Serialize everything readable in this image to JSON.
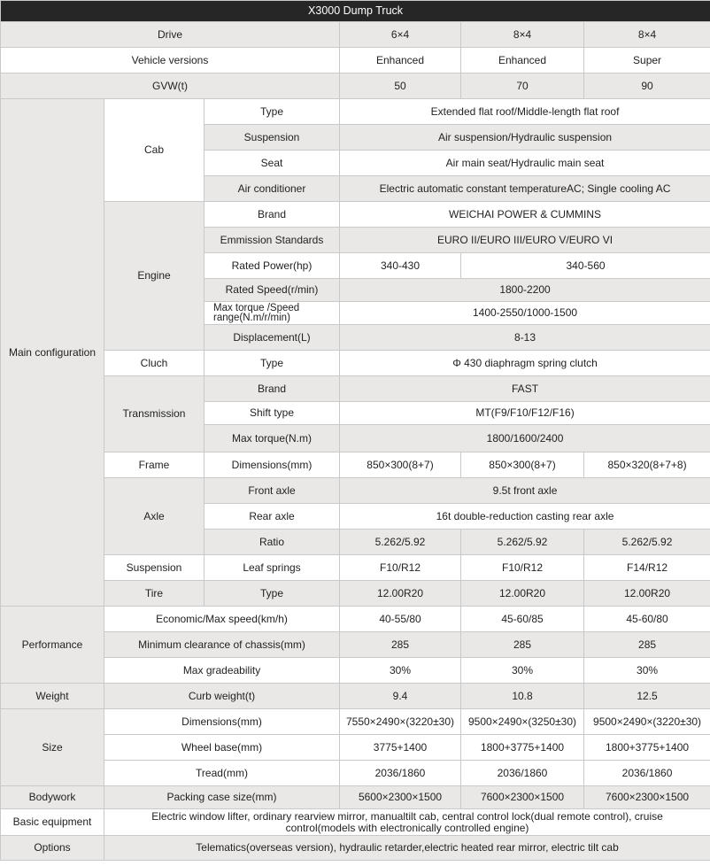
{
  "title": "X3000 Dump Truck",
  "header": {
    "drive": {
      "label": "Drive",
      "values": [
        "6×4",
        "8×4",
        "8×4"
      ]
    },
    "versions": {
      "label": "Vehicle versions",
      "values": [
        "Enhanced",
        "Enhanced",
        "Super"
      ]
    },
    "gvw": {
      "label": "GVW(t)",
      "values": [
        "50",
        "70",
        "90"
      ]
    }
  },
  "main_config": {
    "label": "Main configuration",
    "cab": {
      "label": "Cab",
      "type": {
        "label": "Type",
        "value": "Extended flat roof/Middle-length flat roof"
      },
      "suspension": {
        "label": "Suspension",
        "value": "Air suspension/Hydraulic suspension"
      },
      "seat": {
        "label": "Seat",
        "value": "Air main seat/Hydraulic main seat"
      },
      "ac": {
        "label": "Air conditioner",
        "value": "Electric automatic constant temperatureAC; Single cooling AC"
      }
    },
    "engine": {
      "label": "Engine",
      "brand": {
        "label": "Brand",
        "value": "WEICHAI POWER & CUMMINS"
      },
      "emission": {
        "label": "Emmission Standards",
        "value": "EURO II/EURO III/EURO V/EURO VI"
      },
      "power": {
        "label": "Rated Power(hp)",
        "values": [
          "340-430",
          "340-560"
        ]
      },
      "speed": {
        "label": "Rated Speed(r/min)",
        "value": "1800-2200"
      },
      "torque": {
        "label": "Max torque /Speed range(N.m/r/min)",
        "value": "1400-2550/1000-1500"
      },
      "displacement": {
        "label": "Displacement(L)",
        "value": "8-13"
      }
    },
    "clutch": {
      "label": "Cluch",
      "type": {
        "label": "Type",
        "value": "Φ 430 diaphragm spring clutch"
      }
    },
    "transmission": {
      "label": "Transmission",
      "brand": {
        "label": "Brand",
        "value": "FAST"
      },
      "shift": {
        "label": "Shift type",
        "value": "MT(F9/F10/F12/F16)"
      },
      "torque": {
        "label": "Max torque(N.m)",
        "value": "1800/1600/2400"
      }
    },
    "frame": {
      "label": "Frame",
      "dims": {
        "label": "Dimensions(mm)",
        "values": [
          "850×300(8+7)",
          "850×300(8+7)",
          "850×320(8+7+8)"
        ]
      }
    },
    "axle": {
      "label": "Axle",
      "front": {
        "label": "Front axle",
        "value": "9.5t front axle"
      },
      "rear": {
        "label": "Rear axle",
        "value": "16t double-reduction casting rear axle"
      },
      "ratio": {
        "label": "Ratio",
        "values": [
          "5.262/5.92",
          "5.262/5.92",
          "5.262/5.92"
        ]
      }
    },
    "suspension": {
      "label": "Suspension",
      "leaf": {
        "label": "Leaf springs",
        "values": [
          "F10/R12",
          "F10/R12",
          "F14/R12"
        ]
      }
    },
    "tire": {
      "label": "Tire",
      "type": {
        "label": "Type",
        "values": [
          "12.00R20",
          "12.00R20",
          "12.00R20"
        ]
      }
    }
  },
  "performance": {
    "label": "Performance",
    "speed": {
      "label": "Economic/Max speed(km/h)",
      "values": [
        "40-55/80",
        "45-60/85",
        "45-60/80"
      ]
    },
    "clearance": {
      "label": "Minimum clearance of chassis(mm)",
      "values": [
        "285",
        "285",
        "285"
      ]
    },
    "grade": {
      "label": "Max gradeability",
      "values": [
        "30%",
        "30%",
        "30%"
      ]
    }
  },
  "weight": {
    "label": "Weight",
    "curb": {
      "label": "Curb weight(t)",
      "values": [
        "9.4",
        "10.8",
        "12.5"
      ]
    }
  },
  "size": {
    "label": "Size",
    "dims": {
      "label": "Dimensions(mm)",
      "values": [
        "7550×2490×(3220±30)",
        "9500×2490×(3250±30)",
        "9500×2490×(3220±30)"
      ]
    },
    "wheelbase": {
      "label": "Wheel base(mm)",
      "values": [
        "3775+1400",
        "1800+3775+1400",
        "1800+3775+1400"
      ]
    },
    "tread": {
      "label": "Tread(mm)",
      "values": [
        "2036/1860",
        "2036/1860",
        "2036/1860"
      ]
    }
  },
  "bodywork": {
    "label": "Bodywork",
    "packing": {
      "label": "Packing case size(mm)",
      "values": [
        "5600×2300×1500",
        "7600×2300×1500",
        "7600×2300×1500"
      ]
    }
  },
  "basic": {
    "label": "Basic equipment",
    "value": "Electric window lifter, ordinary rearview mirror, manualtilt cab, central control lock(dual remote control), cruise control(models with electronically controlled engine)"
  },
  "options": {
    "label": "Options",
    "value": "Telematics(overseas version), hydraulic retarder,electric heated rear mirror, electric tilt cab"
  },
  "colors": {
    "title_bg": "#262626",
    "shaded_row": "#e9e8e7",
    "border": "#c9c9c9"
  }
}
